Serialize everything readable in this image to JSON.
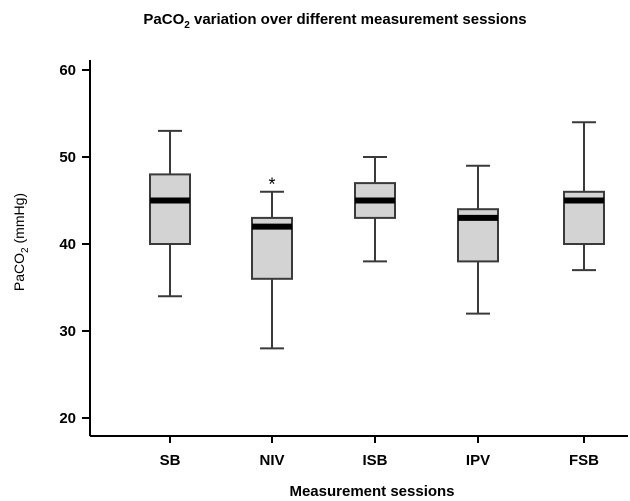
{
  "chart_data": {
    "type": "box",
    "title": {
      "main": "PaCO",
      "sub": "2",
      "rest": " variation over different measurement sessions"
    },
    "xlabel": "Measurement sessions",
    "ylabel": {
      "main": "PaCO",
      "sub": "2",
      "rest": " (mmHg)"
    },
    "ylim": [
      20,
      60
    ],
    "yticks": [
      20,
      30,
      40,
      50,
      60
    ],
    "categories": [
      "SB",
      "NIV",
      "ISB",
      "IPV",
      "FSB"
    ],
    "boxes": [
      {
        "label": "SB",
        "min": 34,
        "q1": 40,
        "median": 45,
        "q3": 48,
        "max": 53
      },
      {
        "label": "NIV",
        "min": 28,
        "q1": 36,
        "median": 42,
        "q3": 43,
        "max": 46,
        "outliers": [
          {
            "value": 47.2,
            "symbol": "*"
          }
        ]
      },
      {
        "label": "ISB",
        "min": 38,
        "q1": 43,
        "median": 45,
        "q3": 47,
        "max": 50
      },
      {
        "label": "IPV",
        "min": 32,
        "q1": 38,
        "median": 43,
        "q3": 44,
        "max": 49
      },
      {
        "label": "FSB",
        "min": 37,
        "q1": 40,
        "median": 45,
        "q3": 46,
        "max": 54
      }
    ],
    "colors": {
      "box_fill": "#d3d3d3",
      "box_stroke": "#3a3a3a",
      "median": "#000000",
      "axis": "#000000"
    }
  }
}
